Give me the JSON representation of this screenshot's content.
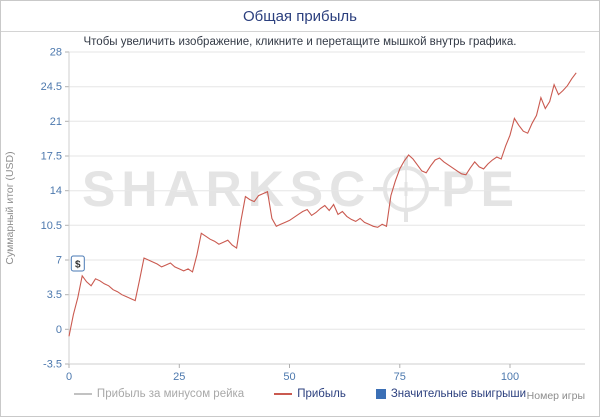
{
  "header": {
    "title": "Общая прибыль",
    "subtitle": "Чтобы увеличить изображение, кликните и перетащите мышкой внутрь графика."
  },
  "watermark": {
    "left": "SHARKSC",
    "right": "PE"
  },
  "chart_data": {
    "type": "line",
    "title": "Общая прибыль",
    "xlabel": "Номер игры",
    "ylabel": "Суммарный итог (USD)",
    "xlim": [
      0,
      117
    ],
    "ylim": [
      -3.5,
      28
    ],
    "xticks": [
      0,
      25,
      50,
      75,
      100
    ],
    "yticks": [
      -3.5,
      0,
      3.5,
      7,
      10.5,
      14,
      17.5,
      21,
      24.5,
      28
    ],
    "grid": "horizontal",
    "legend_position": "bottom",
    "colors": {
      "profit_line": "#ca5a50",
      "rake_free_line": "#c2c2c2",
      "significant_win": "#3b6fb5",
      "tick_text": "#4d79ae"
    },
    "series": [
      {
        "name": "Прибыль за минусом рейка",
        "color": "#c2c2c2",
        "visible": false,
        "points": []
      },
      {
        "name": "Прибыль",
        "color": "#ca5a50",
        "visible": true,
        "points": [
          [
            0,
            -0.7
          ],
          [
            1,
            1.5
          ],
          [
            2,
            3.2
          ],
          [
            3,
            5.4
          ],
          [
            4,
            4.8
          ],
          [
            5,
            4.4
          ],
          [
            6,
            5.1
          ],
          [
            7,
            4.9
          ],
          [
            8,
            4.6
          ],
          [
            9,
            4.4
          ],
          [
            10,
            4.0
          ],
          [
            11,
            3.8
          ],
          [
            12,
            3.5
          ],
          [
            13,
            3.3
          ],
          [
            14,
            3.1
          ],
          [
            15,
            2.9
          ],
          [
            16,
            5.0
          ],
          [
            17,
            7.2
          ],
          [
            18,
            7.0
          ],
          [
            19,
            6.8
          ],
          [
            20,
            6.6
          ],
          [
            21,
            6.3
          ],
          [
            22,
            6.5
          ],
          [
            23,
            6.7
          ],
          [
            24,
            6.3
          ],
          [
            25,
            6.1
          ],
          [
            26,
            5.9
          ],
          [
            27,
            6.1
          ],
          [
            28,
            5.8
          ],
          [
            29,
            7.5
          ],
          [
            30,
            9.7
          ],
          [
            31,
            9.4
          ],
          [
            32,
            9.1
          ],
          [
            33,
            8.9
          ],
          [
            34,
            8.6
          ],
          [
            35,
            8.8
          ],
          [
            36,
            9.0
          ],
          [
            37,
            8.5
          ],
          [
            38,
            8.2
          ],
          [
            39,
            11.0
          ],
          [
            40,
            13.4
          ],
          [
            41,
            13.1
          ],
          [
            42,
            12.9
          ],
          [
            43,
            13.5
          ],
          [
            44,
            13.7
          ],
          [
            45,
            13.9
          ],
          [
            46,
            11.2
          ],
          [
            47,
            10.4
          ],
          [
            48,
            10.6
          ],
          [
            49,
            10.8
          ],
          [
            50,
            11.0
          ],
          [
            51,
            11.3
          ],
          [
            52,
            11.6
          ],
          [
            53,
            11.9
          ],
          [
            54,
            12.1
          ],
          [
            55,
            11.5
          ],
          [
            56,
            11.8
          ],
          [
            57,
            12.2
          ],
          [
            58,
            12.5
          ],
          [
            59,
            12.0
          ],
          [
            60,
            12.6
          ],
          [
            61,
            11.6
          ],
          [
            62,
            11.9
          ],
          [
            63,
            11.4
          ],
          [
            64,
            11.1
          ],
          [
            65,
            10.9
          ],
          [
            66,
            11.2
          ],
          [
            67,
            10.8
          ],
          [
            68,
            10.6
          ],
          [
            69,
            10.4
          ],
          [
            70,
            10.3
          ],
          [
            71,
            10.6
          ],
          [
            72,
            10.4
          ],
          [
            73,
            13.5
          ],
          [
            74,
            15.0
          ],
          [
            75,
            16.2
          ],
          [
            76,
            17.0
          ],
          [
            77,
            17.6
          ],
          [
            78,
            17.2
          ],
          [
            79,
            16.6
          ],
          [
            80,
            16.0
          ],
          [
            81,
            15.8
          ],
          [
            82,
            16.5
          ],
          [
            83,
            17.1
          ],
          [
            84,
            17.3
          ],
          [
            85,
            16.9
          ],
          [
            86,
            16.6
          ],
          [
            87,
            16.3
          ],
          [
            88,
            16.0
          ],
          [
            89,
            15.7
          ],
          [
            90,
            15.6
          ],
          [
            91,
            16.3
          ],
          [
            92,
            16.9
          ],
          [
            93,
            16.4
          ],
          [
            94,
            16.2
          ],
          [
            95,
            16.7
          ],
          [
            96,
            17.1
          ],
          [
            97,
            17.4
          ],
          [
            98,
            17.2
          ],
          [
            99,
            18.5
          ],
          [
            100,
            19.6
          ],
          [
            101,
            21.3
          ],
          [
            102,
            20.6
          ],
          [
            103,
            20.0
          ],
          [
            104,
            19.8
          ],
          [
            105,
            20.8
          ],
          [
            106,
            21.6
          ],
          [
            107,
            23.4
          ],
          [
            108,
            22.3
          ],
          [
            109,
            23.0
          ],
          [
            110,
            24.7
          ],
          [
            111,
            23.7
          ],
          [
            112,
            24.1
          ],
          [
            113,
            24.6
          ],
          [
            114,
            25.3
          ],
          [
            115,
            25.9
          ]
        ]
      }
    ],
    "markers": [
      {
        "type": "significant-win",
        "label": "$",
        "x": 2,
        "y": 6.6
      }
    ],
    "legend": [
      {
        "label": "Прибыль за минусом рейка",
        "swatch": "line",
        "color": "#c2c2c2",
        "text_color": "#a8a8a8"
      },
      {
        "label": "Прибыль",
        "swatch": "line",
        "color": "#ca5a50",
        "text_color": "#2b3f7e"
      },
      {
        "label": "Значительные выигрыши",
        "swatch": "square",
        "color": "#3b6fb5",
        "text_color": "#2b3f7e"
      }
    ]
  }
}
